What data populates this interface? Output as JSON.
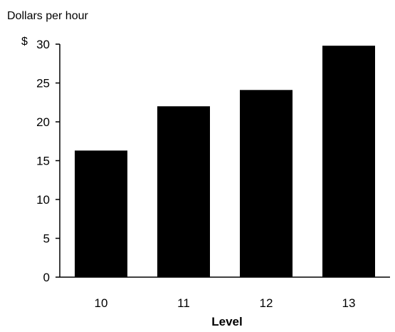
{
  "chart_data": {
    "type": "bar",
    "ylabel": "Dollars per hour",
    "y_prefix": "$",
    "xlabel": "Level",
    "categories": [
      "10",
      "11",
      "12",
      "13"
    ],
    "values": [
      16.3,
      22.0,
      24.1,
      29.8
    ],
    "ylim": [
      0,
      30
    ],
    "yticks": [
      0,
      5,
      10,
      15,
      20,
      25,
      30
    ],
    "bar_color": "#000000",
    "grid": false
  }
}
